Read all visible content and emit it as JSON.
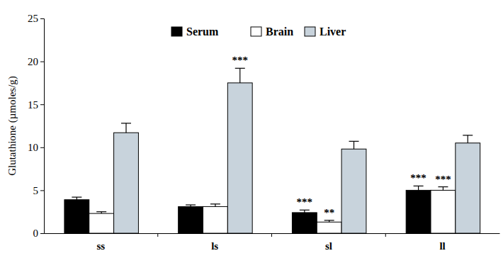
{
  "chart_data": {
    "type": "bar",
    "y_label": "Glutathione (µmoles/g)",
    "categories": [
      "ss",
      "ls",
      "sl",
      "ll"
    ],
    "series": [
      {
        "name": "Serum",
        "color": "#000000",
        "values": [
          3.9,
          3.1,
          2.4,
          5.0
        ],
        "errors": [
          0.3,
          0.2,
          0.3,
          0.5
        ],
        "significance": [
          null,
          null,
          "***",
          "***"
        ]
      },
      {
        "name": "Brain",
        "color": "#ffffff",
        "values": [
          2.3,
          3.1,
          1.3,
          5.0
        ],
        "errors": [
          0.2,
          0.3,
          0.2,
          0.4
        ],
        "significance": [
          null,
          null,
          "**",
          "***"
        ]
      },
      {
        "name": "Liver",
        "color": "#c8d3dc",
        "values": [
          11.7,
          17.5,
          9.8,
          10.5
        ],
        "errors": [
          1.1,
          1.7,
          0.9,
          0.9
        ],
        "significance": [
          null,
          "***",
          null,
          null
        ]
      }
    ],
    "ylim": [
      0,
      25
    ],
    "yticks": [
      0,
      5,
      10,
      15,
      20,
      25
    ],
    "grid": false,
    "legend": "top"
  }
}
